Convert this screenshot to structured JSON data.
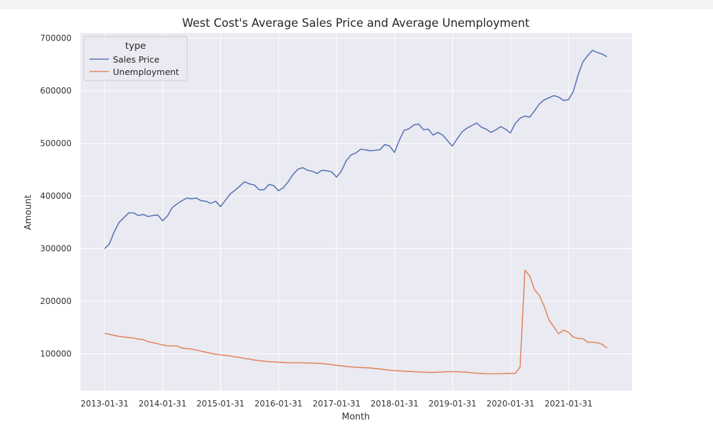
{
  "chart_data": {
    "type": "line",
    "title": "West Cost's Average Sales Price and Average Unemployment",
    "xlabel": "Month",
    "ylabel": "Amount",
    "x_start": "2013-01-31",
    "x_end": "2021-09-30",
    "x_ticks": [
      "2013-01-31",
      "2014-01-31",
      "2015-01-31",
      "2016-01-31",
      "2017-01-31",
      "2018-01-31",
      "2019-01-31",
      "2020-01-31",
      "2021-01-31"
    ],
    "ylim": [
      30000,
      710000
    ],
    "y_ticks": [
      100000,
      200000,
      300000,
      400000,
      500000,
      600000,
      700000
    ],
    "y_tick_labels": [
      "100000",
      "200000",
      "300000",
      "400000",
      "500000",
      "600000",
      "700000"
    ],
    "grid": true,
    "legend": {
      "title": "type",
      "placement": "top-left"
    },
    "series": [
      {
        "name": "Sales Price",
        "color": "#5874b4",
        "values": [
          300000,
          309000,
          332000,
          350000,
          359000,
          368000,
          368000,
          363000,
          365000,
          361000,
          363000,
          364000,
          353000,
          362000,
          378000,
          385000,
          391000,
          396000,
          395000,
          396000,
          391000,
          390000,
          386000,
          390000,
          380000,
          392000,
          404000,
          411000,
          419000,
          427000,
          423000,
          421000,
          412000,
          412000,
          422000,
          420000,
          410000,
          416000,
          427000,
          441000,
          451000,
          454000,
          449000,
          447000,
          443000,
          449000,
          448000,
          446000,
          436000,
          447000,
          467000,
          478000,
          482000,
          489000,
          488000,
          486000,
          487000,
          488000,
          498000,
          495000,
          483000,
          506000,
          525000,
          528000,
          535000,
          537000,
          526000,
          527000,
          516000,
          521000,
          516000,
          505000,
          495000,
          509000,
          522000,
          529000,
          534000,
          539000,
          531000,
          527000,
          521000,
          526000,
          532000,
          527000,
          520000,
          538000,
          548000,
          552000,
          550000,
          562000,
          575000,
          583000,
          587000,
          591000,
          588000,
          582000,
          583000,
          598000,
          630000,
          655000,
          667000,
          677000,
          673000,
          670000,
          665000
        ]
      },
      {
        "name": "Unemployment",
        "color": "#e0875f",
        "values": [
          139000,
          137000,
          135000,
          133000,
          132000,
          131000,
          130000,
          128000,
          127000,
          123000,
          121000,
          119000,
          117000,
          115000,
          115000,
          115000,
          111000,
          110000,
          109000,
          107000,
          105000,
          103000,
          101000,
          99000,
          98000,
          97000,
          96000,
          94000,
          93000,
          91000,
          90000,
          88000,
          87000,
          86000,
          85000,
          84500,
          84000,
          83500,
          83000,
          83000,
          83000,
          83000,
          82500,
          82500,
          82000,
          81500,
          80500,
          79500,
          78000,
          77000,
          76000,
          75000,
          74500,
          74000,
          73500,
          73000,
          72000,
          71000,
          70000,
          69000,
          68000,
          67500,
          67000,
          66500,
          66000,
          65500,
          65000,
          64500,
          64500,
          65000,
          65500,
          66000,
          66000,
          66000,
          65500,
          65000,
          64000,
          63000,
          62500,
          62000,
          62000,
          62000,
          62000,
          62500,
          62500,
          62500,
          75000,
          259000,
          248000,
          222000,
          211000,
          190000,
          164000,
          151000,
          138000,
          145000,
          141000,
          132000,
          129000,
          129000,
          122000,
          122000,
          121000,
          118000,
          111000
        ]
      }
    ]
  }
}
